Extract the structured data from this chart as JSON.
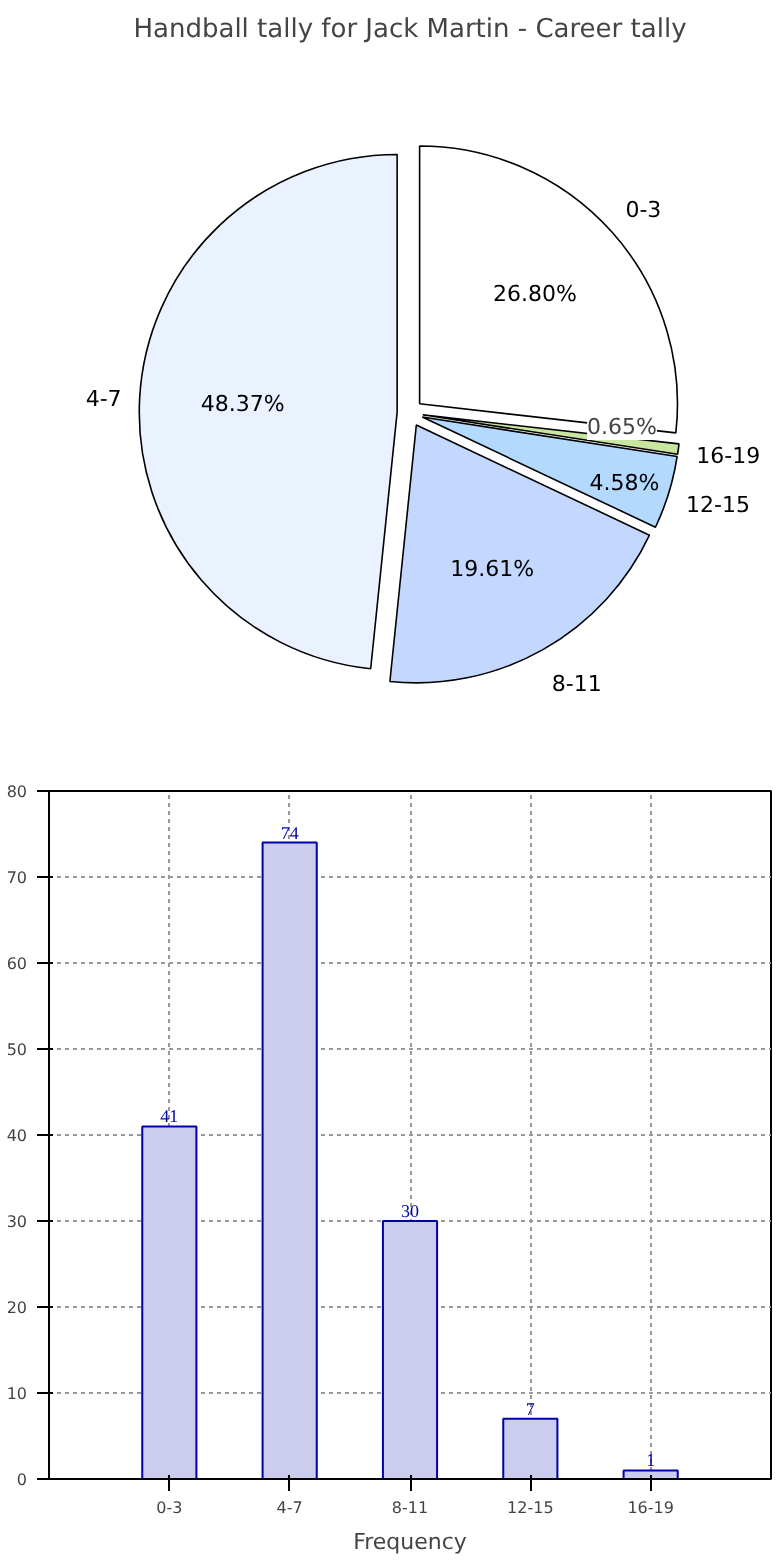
{
  "chart_data": [
    {
      "type": "pie",
      "title": "Handball tally for Jack Martin - Career tally",
      "categories": [
        "0-3",
        "16-19",
        "12-15",
        "8-11",
        "4-7"
      ],
      "values": [
        26.8,
        0.65,
        4.58,
        19.61,
        48.37
      ],
      "colors": [
        "#ffffff",
        "#c8e6a0",
        "#b3d9ff",
        "#c4d8ff",
        "#eaf1ff"
      ],
      "value_labels": [
        "26.80%",
        "0.65%",
        "4.58%",
        "19.61%",
        "48.37%"
      ]
    },
    {
      "type": "bar",
      "categories": [
        "0-3",
        "4-7",
        "8-11",
        "12-15",
        "16-19"
      ],
      "values": [
        41,
        74,
        30,
        7,
        1
      ],
      "color": "#ccccee",
      "xlabel": "Frequency",
      "ylim": [
        0,
        80
      ],
      "yticks": [
        0,
        10,
        20,
        30,
        40,
        50,
        60,
        70,
        80
      ],
      "grid": true,
      "data_labels": true
    }
  ]
}
